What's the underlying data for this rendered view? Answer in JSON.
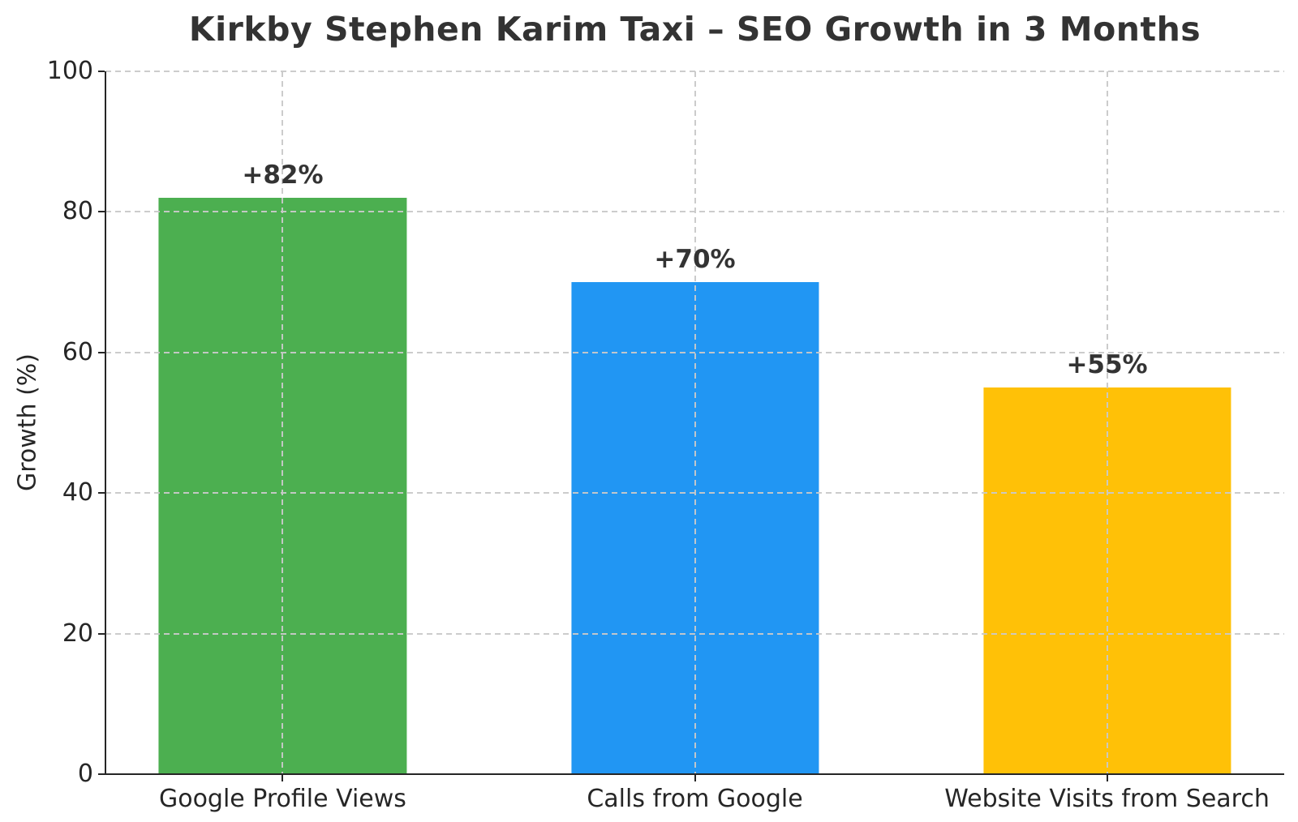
{
  "chart_data": {
    "type": "bar",
    "title": "Kirkby Stephen Karim Taxi – SEO Growth in 3 Months",
    "xlabel": "",
    "ylabel": "Growth (%)",
    "categories": [
      "Google Profile Views",
      "Calls from Google",
      "Website Visits from Search"
    ],
    "values": [
      82,
      70,
      55
    ],
    "value_labels": [
      "+82%",
      "+70%",
      "+55%"
    ],
    "bar_colors": [
      "#4caf50",
      "#2196f3",
      "#ffc107"
    ],
    "ylim": [
      0,
      100
    ],
    "yticks": [
      0,
      20,
      40,
      60,
      80,
      100
    ],
    "grid": "dashed",
    "grid_color": "#c9c9c9",
    "axis_color": "#262626",
    "title_color": "#333333",
    "tick_label_color": "#262626",
    "legend": "none"
  }
}
